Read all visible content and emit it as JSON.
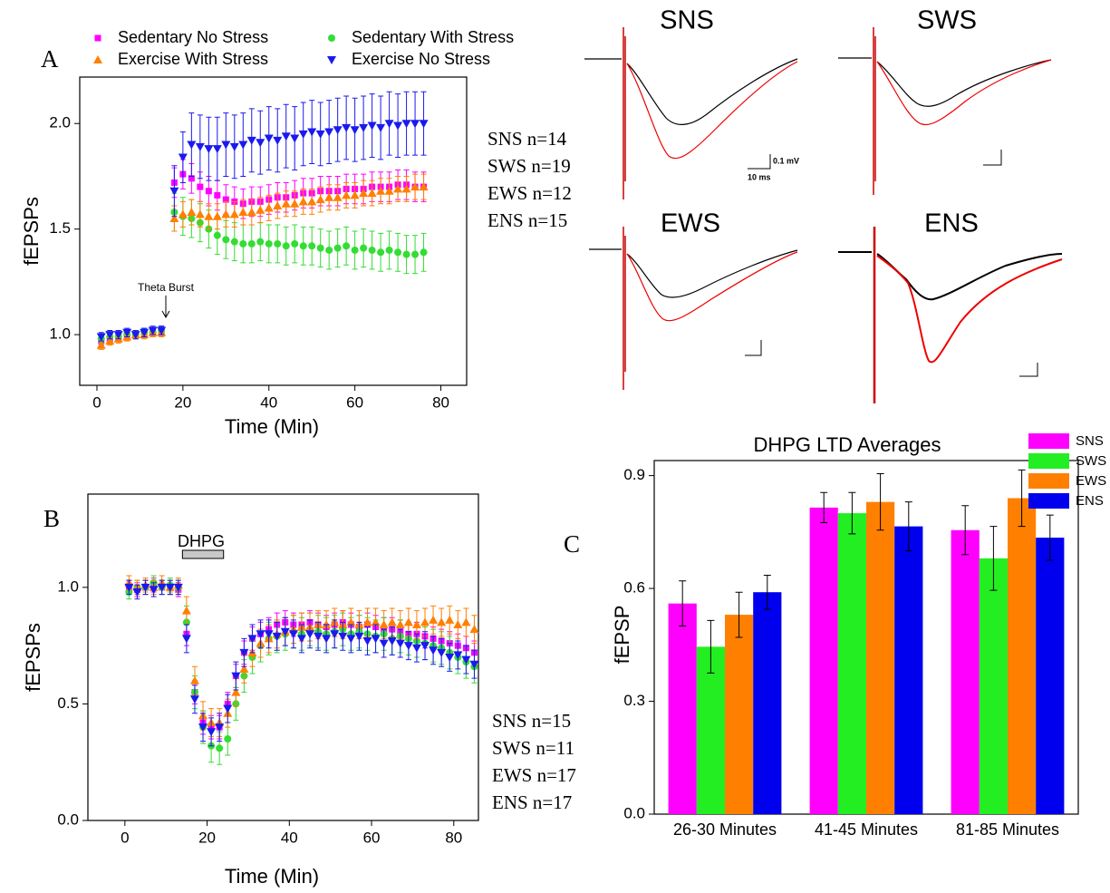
{
  "chart_data": [
    {
      "type": "scatter",
      "panel": "A",
      "xlabel": "Time (Min)",
      "ylabel": "fEPSPs",
      "xlim": [
        -4,
        86
      ],
      "ylim": [
        0.76,
        2.22
      ],
      "xticks": [
        0,
        20,
        40,
        60,
        80
      ],
      "yticks": [
        {
          "value": 1,
          "label": "1.0"
        },
        1.5,
        {
          "value": 2,
          "label": "2.0"
        }
      ],
      "legend": "top",
      "annotations": [
        "Theta Burst",
        "SNS n=14",
        "SWS n=19",
        "EWS n=12",
        "ENS n=15"
      ],
      "x": [
        1,
        3,
        5,
        7,
        9,
        11,
        13,
        15,
        18,
        20,
        22,
        24,
        26,
        28,
        30,
        32,
        34,
        36,
        38,
        40,
        42,
        44,
        46,
        48,
        50,
        52,
        54,
        56,
        58,
        60,
        62,
        64,
        66,
        68,
        70,
        72,
        74,
        76
      ],
      "series": [
        {
          "name": "Sedentary No Stress",
          "color": "#ff00ff",
          "marker": "square",
          "values": [
            0.97,
            0.98,
            0.99,
            1.0,
            1.0,
            1.01,
            1.01,
            1.02,
            1.72,
            1.76,
            1.74,
            1.7,
            1.68,
            1.66,
            1.64,
            1.63,
            1.62,
            1.63,
            1.63,
            1.64,
            1.65,
            1.65,
            1.66,
            1.67,
            1.67,
            1.68,
            1.68,
            1.68,
            1.69,
            1.69,
            1.69,
            1.7,
            1.7,
            1.7,
            1.71,
            1.71,
            1.7,
            1.7
          ],
          "errors": [
            0.02,
            0.02,
            0.02,
            0.02,
            0.02,
            0.02,
            0.02,
            0.02,
            0.07,
            0.07,
            0.07,
            0.07,
            0.07,
            0.07,
            0.07,
            0.07,
            0.07,
            0.07,
            0.07,
            0.07,
            0.07,
            0.07,
            0.07,
            0.07,
            0.07,
            0.07,
            0.07,
            0.07,
            0.07,
            0.07,
            0.07,
            0.07,
            0.07,
            0.07,
            0.07,
            0.07,
            0.07,
            0.07
          ]
        },
        {
          "name": "Sedentary With Stress",
          "color": "#33dd33",
          "marker": "circle",
          "values": [
            0.98,
            0.99,
            0.99,
            1.0,
            1.0,
            1.01,
            1.01,
            1.02,
            1.58,
            1.56,
            1.55,
            1.53,
            1.5,
            1.47,
            1.45,
            1.44,
            1.43,
            1.43,
            1.44,
            1.43,
            1.43,
            1.42,
            1.43,
            1.42,
            1.42,
            1.41,
            1.4,
            1.41,
            1.42,
            1.4,
            1.41,
            1.4,
            1.39,
            1.4,
            1.39,
            1.38,
            1.38,
            1.39
          ],
          "errors": [
            0.02,
            0.02,
            0.02,
            0.02,
            0.02,
            0.02,
            0.02,
            0.02,
            0.09,
            0.09,
            0.09,
            0.09,
            0.09,
            0.09,
            0.09,
            0.09,
            0.09,
            0.09,
            0.09,
            0.09,
            0.09,
            0.09,
            0.09,
            0.09,
            0.09,
            0.09,
            0.09,
            0.09,
            0.09,
            0.09,
            0.09,
            0.09,
            0.09,
            0.09,
            0.09,
            0.09,
            0.09,
            0.09
          ]
        },
        {
          "name": "Exercise With Stress",
          "color": "#ff7f00",
          "marker": "triangle-up",
          "values": [
            0.95,
            0.97,
            0.98,
            0.99,
            1.0,
            1.0,
            1.01,
            1.01,
            1.55,
            1.57,
            1.58,
            1.57,
            1.56,
            1.56,
            1.57,
            1.57,
            1.58,
            1.58,
            1.59,
            1.6,
            1.61,
            1.62,
            1.62,
            1.63,
            1.63,
            1.64,
            1.65,
            1.65,
            1.66,
            1.66,
            1.67,
            1.67,
            1.68,
            1.68,
            1.69,
            1.69,
            1.7,
            1.7
          ],
          "errors": [
            0.02,
            0.02,
            0.02,
            0.02,
            0.02,
            0.02,
            0.02,
            0.02,
            0.06,
            0.06,
            0.06,
            0.06,
            0.06,
            0.06,
            0.06,
            0.06,
            0.06,
            0.06,
            0.06,
            0.06,
            0.06,
            0.06,
            0.06,
            0.06,
            0.06,
            0.06,
            0.06,
            0.06,
            0.06,
            0.06,
            0.06,
            0.06,
            0.06,
            0.06,
            0.06,
            0.06,
            0.06,
            0.06
          ]
        },
        {
          "name": "Exercise No Stress",
          "color": "#1a1aee",
          "marker": "triangle-down",
          "values": [
            0.99,
            1.0,
            1.0,
            1.01,
            1.0,
            1.01,
            1.02,
            1.02,
            1.68,
            1.84,
            1.9,
            1.89,
            1.88,
            1.88,
            1.9,
            1.89,
            1.9,
            1.92,
            1.91,
            1.93,
            1.92,
            1.94,
            1.93,
            1.95,
            1.96,
            1.95,
            1.96,
            1.97,
            1.98,
            1.97,
            1.98,
            1.99,
            1.98,
            2.0,
            1.99,
            2.0,
            2.0,
            2.0
          ],
          "errors": [
            0.02,
            0.02,
            0.02,
            0.02,
            0.02,
            0.02,
            0.02,
            0.02,
            0.12,
            0.12,
            0.15,
            0.15,
            0.15,
            0.15,
            0.15,
            0.15,
            0.15,
            0.15,
            0.15,
            0.15,
            0.15,
            0.15,
            0.15,
            0.15,
            0.15,
            0.15,
            0.15,
            0.15,
            0.15,
            0.15,
            0.15,
            0.15,
            0.15,
            0.15,
            0.15,
            0.15,
            0.15,
            0.15
          ]
        }
      ]
    },
    {
      "type": "scatter",
      "panel": "B",
      "xlabel": "Time (Min)",
      "ylabel": "fEPSPs",
      "xlim": [
        -9,
        86
      ],
      "ylim": [
        0,
        1.4
      ],
      "xticks": [
        0,
        20,
        40,
        60,
        80
      ],
      "yticks": [
        {
          "value": 0,
          "label": "0.0"
        },
        0.5,
        {
          "value": 1,
          "label": "1.0"
        }
      ],
      "annotations": [
        "DHPG",
        "SNS n=15",
        "SWS n=11",
        "EWS n=17",
        "ENS n=17"
      ],
      "span": [
        14,
        24
      ],
      "x": [
        1,
        3,
        5,
        7,
        9,
        11,
        13,
        15,
        17,
        19,
        21,
        23,
        25,
        27,
        29,
        31,
        33,
        35,
        37,
        39,
        41,
        43,
        45,
        47,
        49,
        51,
        53,
        55,
        57,
        59,
        61,
        63,
        65,
        67,
        69,
        71,
        73,
        75,
        77,
        79,
        81,
        83,
        85
      ],
      "series": [
        {
          "name": "SNS",
          "color": "#ff00ff",
          "marker": "square",
          "values": [
            1.0,
            0.99,
            1.0,
            1.01,
            1.0,
            1.0,
            0.99,
            0.8,
            0.55,
            0.42,
            0.4,
            0.4,
            0.5,
            0.62,
            0.72,
            0.78,
            0.8,
            0.82,
            0.84,
            0.85,
            0.84,
            0.84,
            0.85,
            0.84,
            0.83,
            0.84,
            0.85,
            0.84,
            0.83,
            0.84,
            0.83,
            0.82,
            0.82,
            0.81,
            0.8,
            0.8,
            0.79,
            0.78,
            0.77,
            0.76,
            0.75,
            0.74,
            0.72
          ],
          "errors": [
            0.03,
            0.03,
            0.03,
            0.03,
            0.03,
            0.03,
            0.03,
            0.05,
            0.05,
            0.05,
            0.05,
            0.05,
            0.05,
            0.05,
            0.05,
            0.05,
            0.05,
            0.05,
            0.05,
            0.05,
            0.05,
            0.05,
            0.05,
            0.05,
            0.05,
            0.05,
            0.05,
            0.05,
            0.05,
            0.05,
            0.05,
            0.05,
            0.05,
            0.05,
            0.05,
            0.05,
            0.05,
            0.05,
            0.05,
            0.05,
            0.05,
            0.05,
            0.05
          ]
        },
        {
          "name": "SWS",
          "color": "#33dd33",
          "marker": "circle",
          "values": [
            0.98,
            1.0,
            1.0,
            1.02,
            1.0,
            1.01,
            1.0,
            0.85,
            0.55,
            0.4,
            0.32,
            0.31,
            0.35,
            0.5,
            0.62,
            0.7,
            0.75,
            0.78,
            0.79,
            0.8,
            0.81,
            0.8,
            0.82,
            0.81,
            0.8,
            0.81,
            0.82,
            0.8,
            0.81,
            0.8,
            0.79,
            0.8,
            0.78,
            0.79,
            0.78,
            0.77,
            0.76,
            0.75,
            0.74,
            0.72,
            0.7,
            0.68,
            0.66
          ],
          "errors": [
            0.03,
            0.03,
            0.03,
            0.03,
            0.03,
            0.03,
            0.03,
            0.07,
            0.07,
            0.07,
            0.07,
            0.07,
            0.07,
            0.07,
            0.07,
            0.07,
            0.07,
            0.07,
            0.07,
            0.07,
            0.07,
            0.07,
            0.07,
            0.07,
            0.07,
            0.07,
            0.07,
            0.07,
            0.07,
            0.07,
            0.07,
            0.07,
            0.07,
            0.07,
            0.07,
            0.07,
            0.07,
            0.07,
            0.07,
            0.07,
            0.07,
            0.07,
            0.07
          ]
        },
        {
          "name": "EWS",
          "color": "#ff7f00",
          "marker": "triangle-up",
          "values": [
            1.02,
            1.0,
            1.01,
            1.0,
            1.02,
            1.0,
            1.01,
            0.9,
            0.6,
            0.45,
            0.42,
            0.42,
            0.46,
            0.55,
            0.65,
            0.72,
            0.76,
            0.78,
            0.8,
            0.81,
            0.82,
            0.83,
            0.83,
            0.84,
            0.84,
            0.85,
            0.84,
            0.85,
            0.84,
            0.85,
            0.85,
            0.84,
            0.85,
            0.84,
            0.85,
            0.84,
            0.85,
            0.86,
            0.85,
            0.86,
            0.84,
            0.85,
            0.82
          ],
          "errors": [
            0.03,
            0.03,
            0.03,
            0.03,
            0.03,
            0.03,
            0.03,
            0.06,
            0.06,
            0.06,
            0.06,
            0.06,
            0.06,
            0.06,
            0.06,
            0.06,
            0.06,
            0.06,
            0.06,
            0.06,
            0.06,
            0.06,
            0.06,
            0.06,
            0.06,
            0.06,
            0.06,
            0.06,
            0.06,
            0.06,
            0.06,
            0.06,
            0.06,
            0.06,
            0.06,
            0.06,
            0.06,
            0.06,
            0.06,
            0.06,
            0.06,
            0.06,
            0.06
          ]
        },
        {
          "name": "ENS",
          "color": "#1a1aee",
          "marker": "triangle-down",
          "values": [
            1.0,
            0.98,
            1.0,
            0.99,
            1.0,
            1.0,
            1.0,
            0.78,
            0.52,
            0.4,
            0.38,
            0.4,
            0.48,
            0.62,
            0.72,
            0.78,
            0.8,
            0.8,
            0.79,
            0.81,
            0.8,
            0.78,
            0.8,
            0.79,
            0.78,
            0.8,
            0.79,
            0.78,
            0.79,
            0.77,
            0.78,
            0.76,
            0.77,
            0.76,
            0.75,
            0.74,
            0.75,
            0.73,
            0.72,
            0.7,
            0.71,
            0.69,
            0.67
          ],
          "errors": [
            0.03,
            0.03,
            0.03,
            0.03,
            0.03,
            0.03,
            0.03,
            0.06,
            0.06,
            0.06,
            0.06,
            0.06,
            0.06,
            0.06,
            0.06,
            0.06,
            0.06,
            0.06,
            0.06,
            0.06,
            0.06,
            0.06,
            0.06,
            0.06,
            0.06,
            0.06,
            0.06,
            0.06,
            0.06,
            0.06,
            0.06,
            0.06,
            0.06,
            0.06,
            0.06,
            0.06,
            0.06,
            0.06,
            0.06,
            0.06,
            0.06,
            0.06,
            0.06
          ]
        }
      ]
    },
    {
      "type": "bar",
      "panel": "C",
      "title": "DHPG LTD Averages",
      "ylabel": "fEPSP",
      "ylim": [
        0,
        0.94
      ],
      "yticks": [
        {
          "value": 0,
          "label": "0.0"
        },
        0.3,
        0.6,
        0.9
      ],
      "legend": "top right",
      "categories": [
        "26-30 Minutes",
        "41-45 Minutes",
        "81-85 Minutes"
      ],
      "series": [
        {
          "name": "SNS",
          "color": "#ff00ff",
          "values": [
            0.56,
            0.815,
            0.755
          ],
          "errors": [
            0.06,
            0.04,
            0.065
          ]
        },
        {
          "name": "SWS",
          "color": "#22ee22",
          "values": [
            0.445,
            0.8,
            0.68
          ],
          "errors": [
            0.07,
            0.055,
            0.085
          ]
        },
        {
          "name": "EWS",
          "color": "#ff8000",
          "values": [
            0.53,
            0.83,
            0.84
          ],
          "errors": [
            0.06,
            0.075,
            0.075
          ]
        },
        {
          "name": "ENS",
          "color": "#0000ee",
          "values": [
            0.59,
            0.765,
            0.735
          ],
          "errors": [
            0.045,
            0.065,
            0.06
          ]
        }
      ]
    }
  ],
  "traces": {
    "titles": [
      "SNS",
      "SWS",
      "EWS",
      "ENS"
    ],
    "scale_labels": [
      "0.1 mV",
      "10 ms"
    ]
  }
}
